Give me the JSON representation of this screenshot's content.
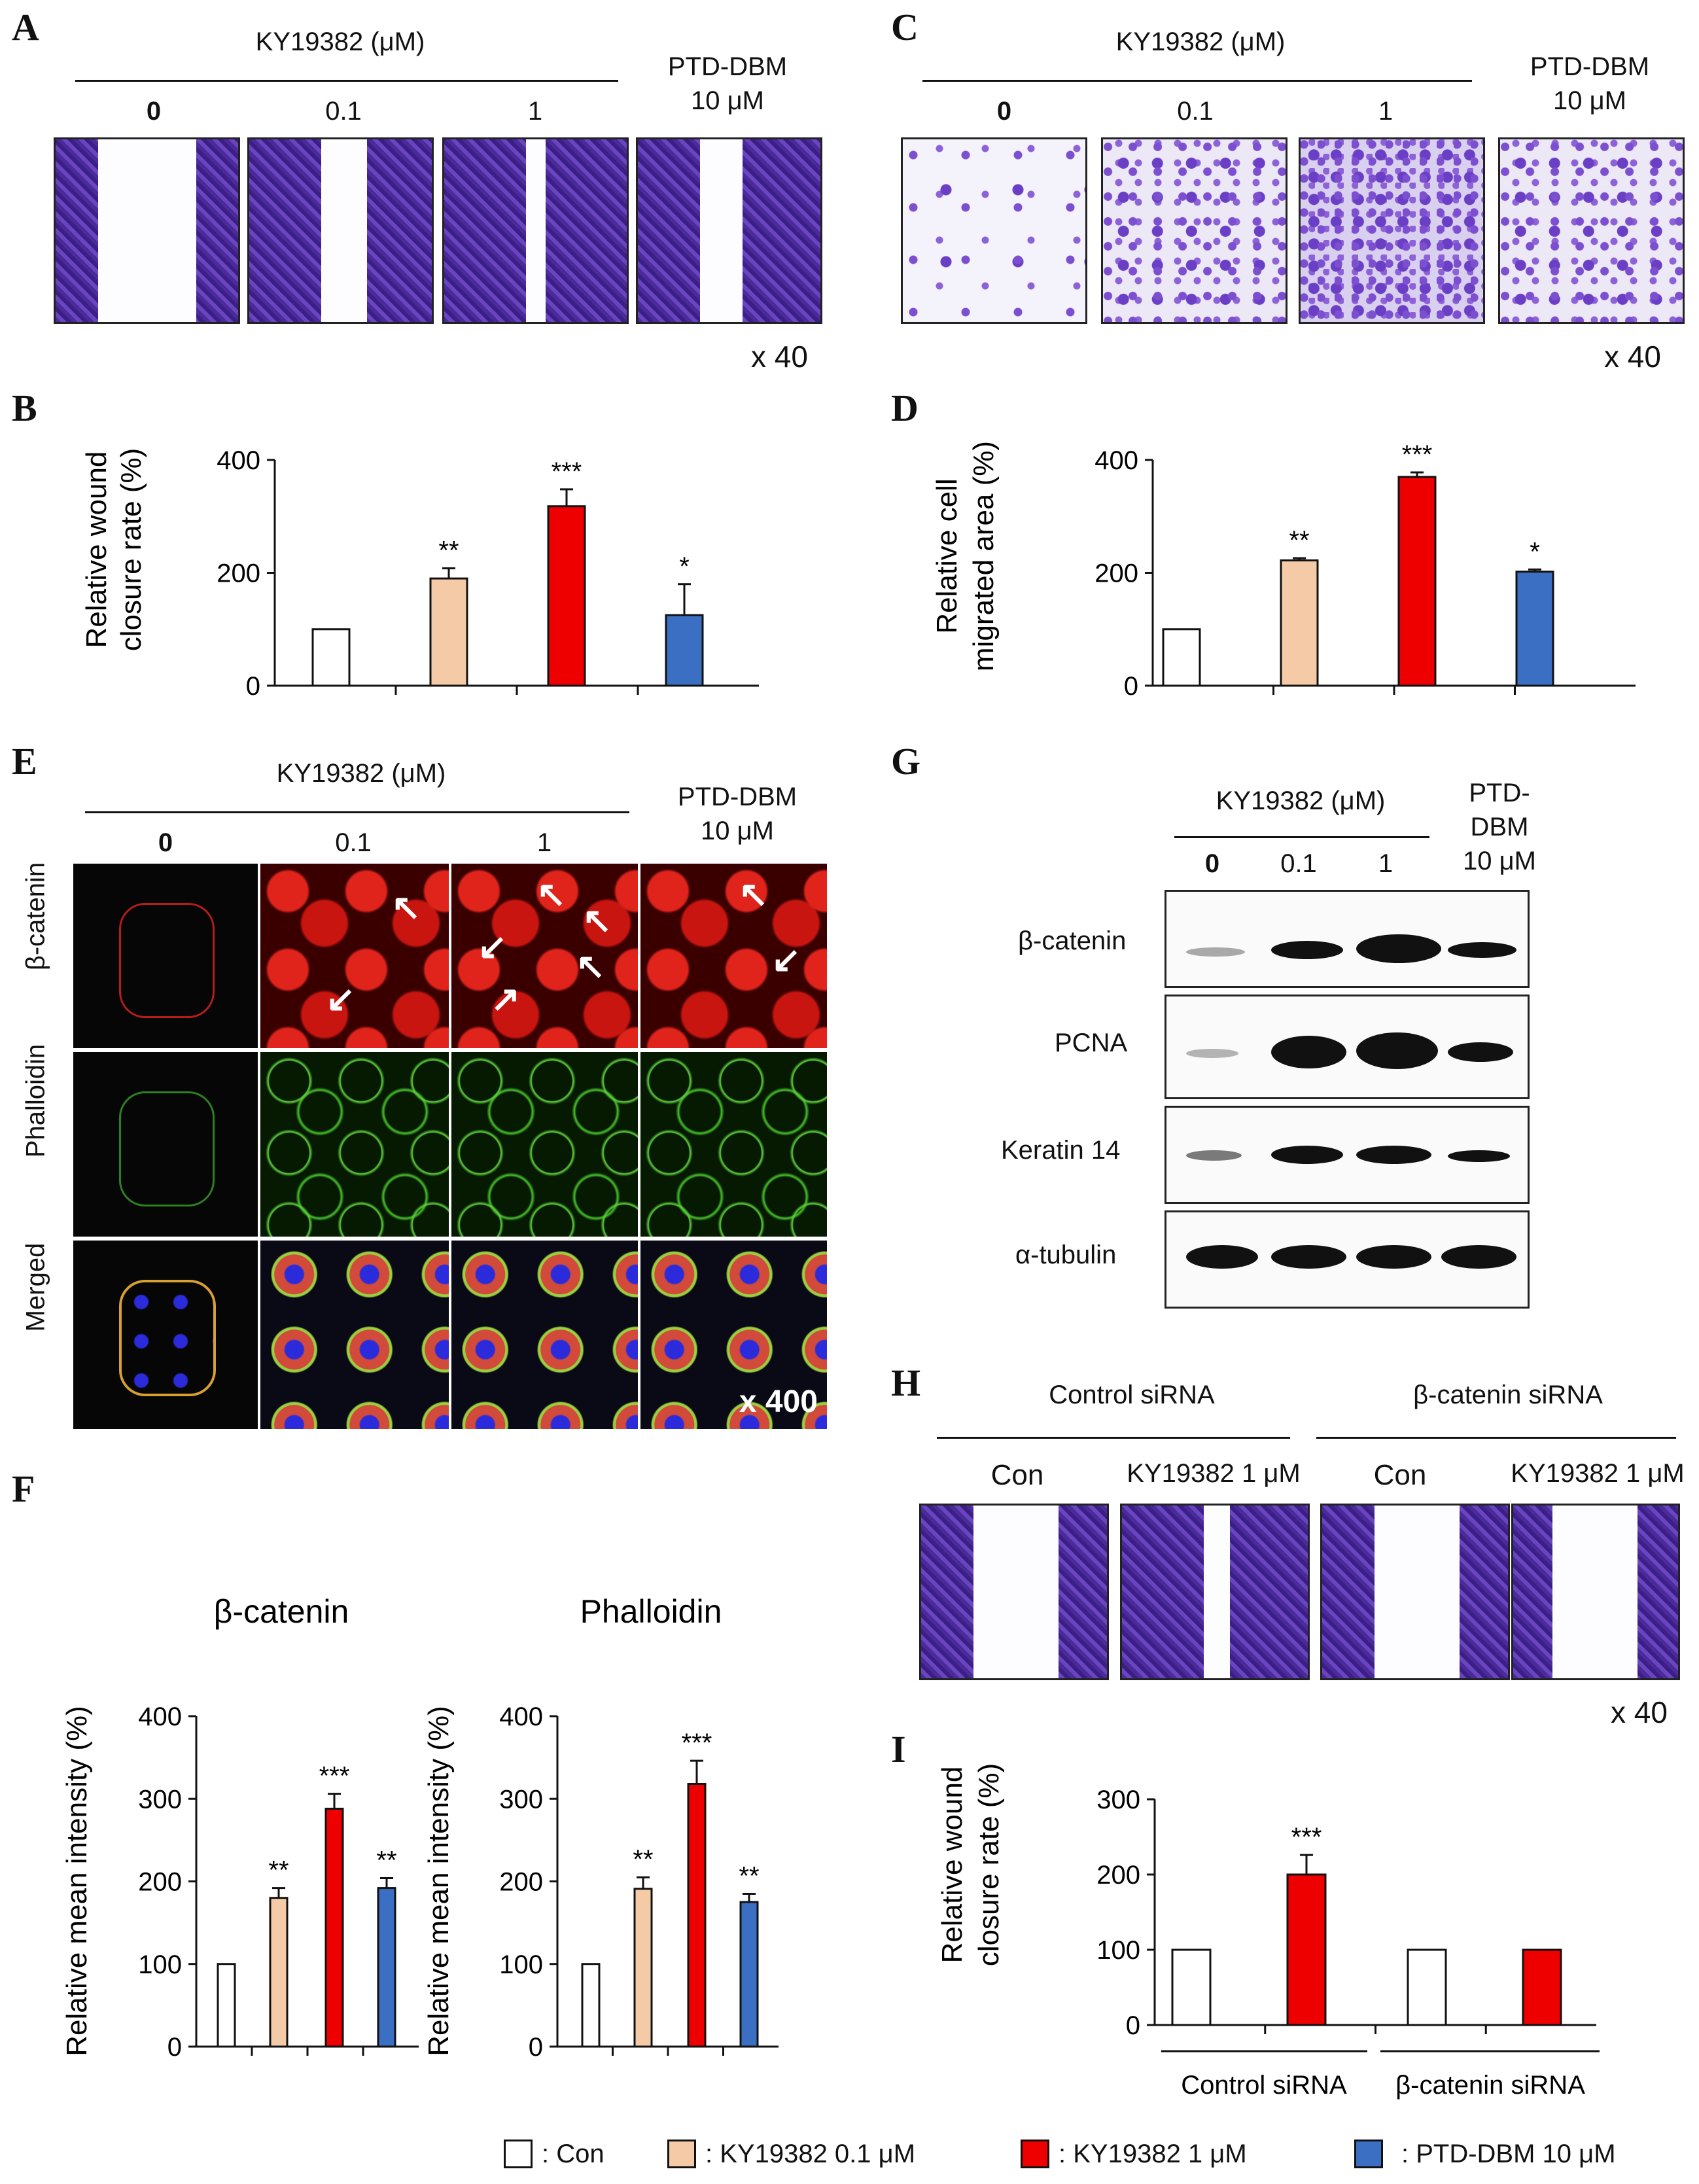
{
  "panel_labels": {
    "A": "A",
    "B": "B",
    "C": "C",
    "D": "D",
    "E": "E",
    "F": "F",
    "G": "G",
    "H": "H",
    "I": "I"
  },
  "treatment": {
    "compound_header": "KY19382 (μM)",
    "doses": [
      "0",
      "0.1",
      "1"
    ],
    "control_line1": "PTD-DBM",
    "control_line2": "10 μM",
    "g_control_line1": "PTD-",
    "g_control_line2": "DBM",
    "g_control_line3": "10 μM"
  },
  "magnification": {
    "x40": "x 40",
    "x400": "x 400"
  },
  "panel_E_rows": [
    "β-catenin",
    "Phalloidin",
    "Merged"
  ],
  "panel_G_rows": [
    "β-catenin",
    "PCNA",
    "Keratin 14",
    "α-tubulin"
  ],
  "panel_H": {
    "groups": [
      "Control siRNA",
      "β-catenin siRNA"
    ],
    "conditions": [
      "Con",
      "KY19382  1 μM",
      "Con",
      "KY19382  1 μM"
    ]
  },
  "legend": [
    {
      "label": ": Con",
      "color": "#ffffff"
    },
    {
      "label": ": KY19382 0.1 μM",
      "color": "#f5cba7"
    },
    {
      "label": ": KY19382 1 μM",
      "color": "#ee0000"
    },
    {
      "label": ": PTD-DBM 10 μM",
      "color": "#3a6fc4"
    }
  ],
  "chart_data": [
    {
      "id": "B",
      "type": "bar",
      "ylabel_line1": "Relative wound",
      "ylabel_line2": "closure rate (%)",
      "ylim": [
        0,
        400
      ],
      "yticks": [
        "0",
        "200",
        "400"
      ],
      "ytick_values": [
        0,
        200,
        400
      ],
      "values": [
        100,
        190,
        318,
        125
      ],
      "errors": [
        0,
        18,
        30,
        55
      ],
      "significance": [
        "",
        "**",
        "***",
        "*"
      ],
      "colors": [
        "#ffffff",
        "#f5cba7",
        "#ee0000",
        "#3a6fc4"
      ]
    },
    {
      "id": "D",
      "type": "bar",
      "ylabel_line1": "Relative cell",
      "ylabel_line2": "migrated area (%)",
      "ylim": [
        0,
        400
      ],
      "yticks": [
        "0",
        "200",
        "400"
      ],
      "ytick_values": [
        0,
        200,
        400
      ],
      "values": [
        100,
        222,
        370,
        202
      ],
      "errors": [
        0,
        4,
        8,
        4
      ],
      "significance": [
        "",
        "**",
        "***",
        "*"
      ],
      "colors": [
        "#ffffff",
        "#f5cba7",
        "#ee0000",
        "#3a6fc4"
      ]
    },
    {
      "id": "F1",
      "type": "bar",
      "title": "β-catenin",
      "ylabel_line1": "Relative mean intensity (%)",
      "ylabel_line2": "",
      "ylim": [
        0,
        400
      ],
      "yticks": [
        "0",
        "100",
        "200",
        "300",
        "400"
      ],
      "ytick_values": [
        0,
        100,
        200,
        300,
        400
      ],
      "values": [
        100,
        180,
        288,
        192
      ],
      "errors": [
        0,
        12,
        18,
        12
      ],
      "significance": [
        "",
        "**",
        "***",
        "**"
      ],
      "colors": [
        "#ffffff",
        "#f5cba7",
        "#ee0000",
        "#3a6fc4"
      ]
    },
    {
      "id": "F2",
      "type": "bar",
      "title": "Phalloidin",
      "ylabel_line1": "Relative mean intensity (%)",
      "ylabel_line2": "",
      "ylim": [
        0,
        400
      ],
      "yticks": [
        "0",
        "100",
        "200",
        "300",
        "400"
      ],
      "ytick_values": [
        0,
        100,
        200,
        300,
        400
      ],
      "values": [
        100,
        191,
        318,
        175
      ],
      "errors": [
        0,
        14,
        28,
        10
      ],
      "significance": [
        "",
        "**",
        "***",
        "**"
      ],
      "colors": [
        "#ffffff",
        "#f5cba7",
        "#ee0000",
        "#3a6fc4"
      ]
    },
    {
      "id": "I",
      "type": "bar",
      "ylabel_line1": "Relative wound",
      "ylabel_line2": "closure rate (%)",
      "ylim": [
        0,
        300
      ],
      "yticks": [
        "0",
        "100",
        "200",
        "300"
      ],
      "ytick_values": [
        0,
        100,
        200,
        300
      ],
      "values": [
        100,
        200,
        100,
        100
      ],
      "errors": [
        0,
        26,
        0,
        0
      ],
      "significance": [
        "",
        "***",
        "",
        ""
      ],
      "colors": [
        "#ffffff",
        "#ee0000",
        "#ffffff",
        "#ee0000"
      ],
      "groups": [
        "Control siRNA",
        "β-catenin siRNA"
      ]
    }
  ]
}
